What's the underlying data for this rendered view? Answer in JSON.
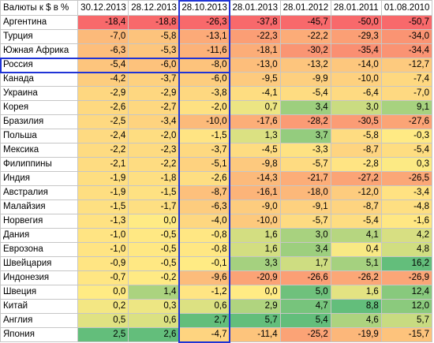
{
  "table": {
    "corner": "Валюты к $ в %",
    "columns": [
      "30.12.2013",
      "28.12.2013",
      "28.10.2013",
      "28.01.2013",
      "28.01.2012",
      "28.01.2011",
      "01.08.2010"
    ],
    "rows": [
      {
        "name": "Аргентина",
        "values": [
          "-18,4",
          "-18,8",
          "-26,3",
          "-37,8",
          "-45,7",
          "-50,0",
          "-50,7"
        ]
      },
      {
        "name": "Турция",
        "values": [
          "-7,0",
          "-5,8",
          "-13,1",
          "-22,3",
          "-22,2",
          "-29,3",
          "-34,0"
        ]
      },
      {
        "name": "Южная Африка",
        "values": [
          "-6,3",
          "-5,3",
          "-11,6",
          "-18,1",
          "-30,2",
          "-35,4",
          "-34,4"
        ]
      },
      {
        "name": "Россия",
        "values": [
          "-5,4",
          "-6,0",
          "-8,0",
          "-13,0",
          "-13,2",
          "-14,0",
          "-12,7"
        ]
      },
      {
        "name": "Канада",
        "values": [
          "-4,2",
          "-3,7",
          "-6,0",
          "-9,5",
          "-9,9",
          "-10,0",
          "-7,4"
        ]
      },
      {
        "name": "Украина",
        "values": [
          "-2,9",
          "-2,9",
          "-3,8",
          "-4,1",
          "-5,4",
          "-6,4",
          "-7,0"
        ]
      },
      {
        "name": "Корея",
        "values": [
          "-2,6",
          "-2,7",
          "-2,0",
          "0,7",
          "3,4",
          "3,0",
          "9,1"
        ]
      },
      {
        "name": "Бразилия",
        "values": [
          "-2,5",
          "-3,4",
          "-10,0",
          "-17,6",
          "-28,2",
          "-30,5",
          "-27,6"
        ]
      },
      {
        "name": "Польша",
        "values": [
          "-2,4",
          "-2,0",
          "-1,5",
          "1,3",
          "3,7",
          "-5,8",
          "-0,3"
        ]
      },
      {
        "name": "Мексика",
        "values": [
          "-2,2",
          "-2,3",
          "-3,7",
          "-4,5",
          "-3,3",
          "-8,7",
          "-5,4"
        ]
      },
      {
        "name": "Филиппины",
        "values": [
          "-2,1",
          "-2,2",
          "-5,1",
          "-9,8",
          "-5,7",
          "-2,8",
          "0,3"
        ]
      },
      {
        "name": "Индия",
        "values": [
          "-1,9",
          "-1,8",
          "-2,6",
          "-14,3",
          "-21,7",
          "-27,2",
          "-26,5"
        ]
      },
      {
        "name": "Австралия",
        "values": [
          "-1,9",
          "-1,5",
          "-8,7",
          "-16,1",
          "-18,0",
          "-12,0",
          "-3,4"
        ]
      },
      {
        "name": "Малайзия",
        "values": [
          "-1,5",
          "-1,7",
          "-6,3",
          "-9,0",
          "-9,1",
          "-8,7",
          "-4,8"
        ]
      },
      {
        "name": "Норвегия",
        "values": [
          "-1,3",
          "0,0",
          "-4,0",
          "-10,0",
          "-5,7",
          "-5,4",
          "-1,6"
        ]
      },
      {
        "name": "Дания",
        "values": [
          "-1,0",
          "-0,5",
          "-0,8",
          "1,6",
          "3,0",
          "4,1",
          "4,2"
        ]
      },
      {
        "name": "Еврозона",
        "values": [
          "-1,0",
          "-0,5",
          "-0,8",
          "1,6",
          "3,4",
          "0,4",
          "4,8"
        ]
      },
      {
        "name": "Швейцария",
        "values": [
          "-0,9",
          "-0,5",
          "-0,1",
          "3,3",
          "1,7",
          "5,1",
          "16,2"
        ]
      },
      {
        "name": "Индонезия",
        "values": [
          "-0,7",
          "-0,2",
          "-9,6",
          "-20,9",
          "-26,6",
          "-26,2",
          "-26,9"
        ]
      },
      {
        "name": "Швеция",
        "values": [
          "0,0",
          "1,4",
          "-1,2",
          "0,0",
          "5,0",
          "1,6",
          "12,4"
        ]
      },
      {
        "name": "Китай",
        "values": [
          "0,2",
          "0,3",
          "0,6",
          "2,9",
          "4,7",
          "8,8",
          "12,0"
        ]
      },
      {
        "name": "Англия",
        "values": [
          "0,5",
          "0,6",
          "2,7",
          "5,7",
          "5,4",
          "4,6",
          "5,7"
        ]
      },
      {
        "name": "Япония",
        "values": [
          "2,5",
          "2,6",
          "-4,7",
          "-11,4",
          "-25,2",
          "-19,9",
          "-15,7"
        ]
      }
    ],
    "highlight_row": 3,
    "highlight_column": 2,
    "colors": {
      "strong_negative": "#f8696b",
      "neutral": "#ffeb84",
      "strong_positive": "#63be7b",
      "highlight_border": "#2034d6"
    }
  }
}
